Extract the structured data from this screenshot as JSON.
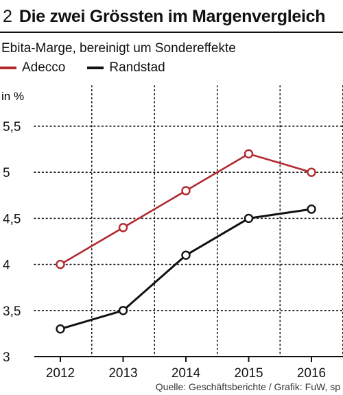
{
  "header": {
    "number": "2",
    "title": "Die zwei Grössten im Margenvergleich",
    "subtitle": "Ebita-Marge, bereinigt um Sondereffekte"
  },
  "colors": {
    "adecco": "#b22a2e",
    "randstad": "#111111",
    "grid": "#111111"
  },
  "source": "Quelle: Geschäftsberichte / Grafik: FuW, sp",
  "chart_data": {
    "type": "line",
    "x": [
      "2012",
      "2013",
      "2014",
      "2015",
      "2016"
    ],
    "series": [
      {
        "name": "Adecco",
        "values": [
          4.0,
          4.4,
          4.8,
          5.2,
          5.0
        ]
      },
      {
        "name": "Randstad",
        "values": [
          3.3,
          3.5,
          4.1,
          4.5,
          4.6
        ]
      }
    ],
    "title": "Die zwei Grössten im Margenvergleich",
    "subtitle": "Ebita-Marge, bereinigt um Sondereffekte",
    "ylabel": "in %",
    "xlabel": "",
    "ylim": [
      3,
      5.5
    ],
    "yticks": [
      3,
      3.5,
      4,
      4.5,
      5,
      5.5
    ],
    "ytick_labels": [
      "3",
      "3,5",
      "4",
      "4,5",
      "5",
      "5,5"
    ],
    "grid": true,
    "legend": "top-left"
  }
}
